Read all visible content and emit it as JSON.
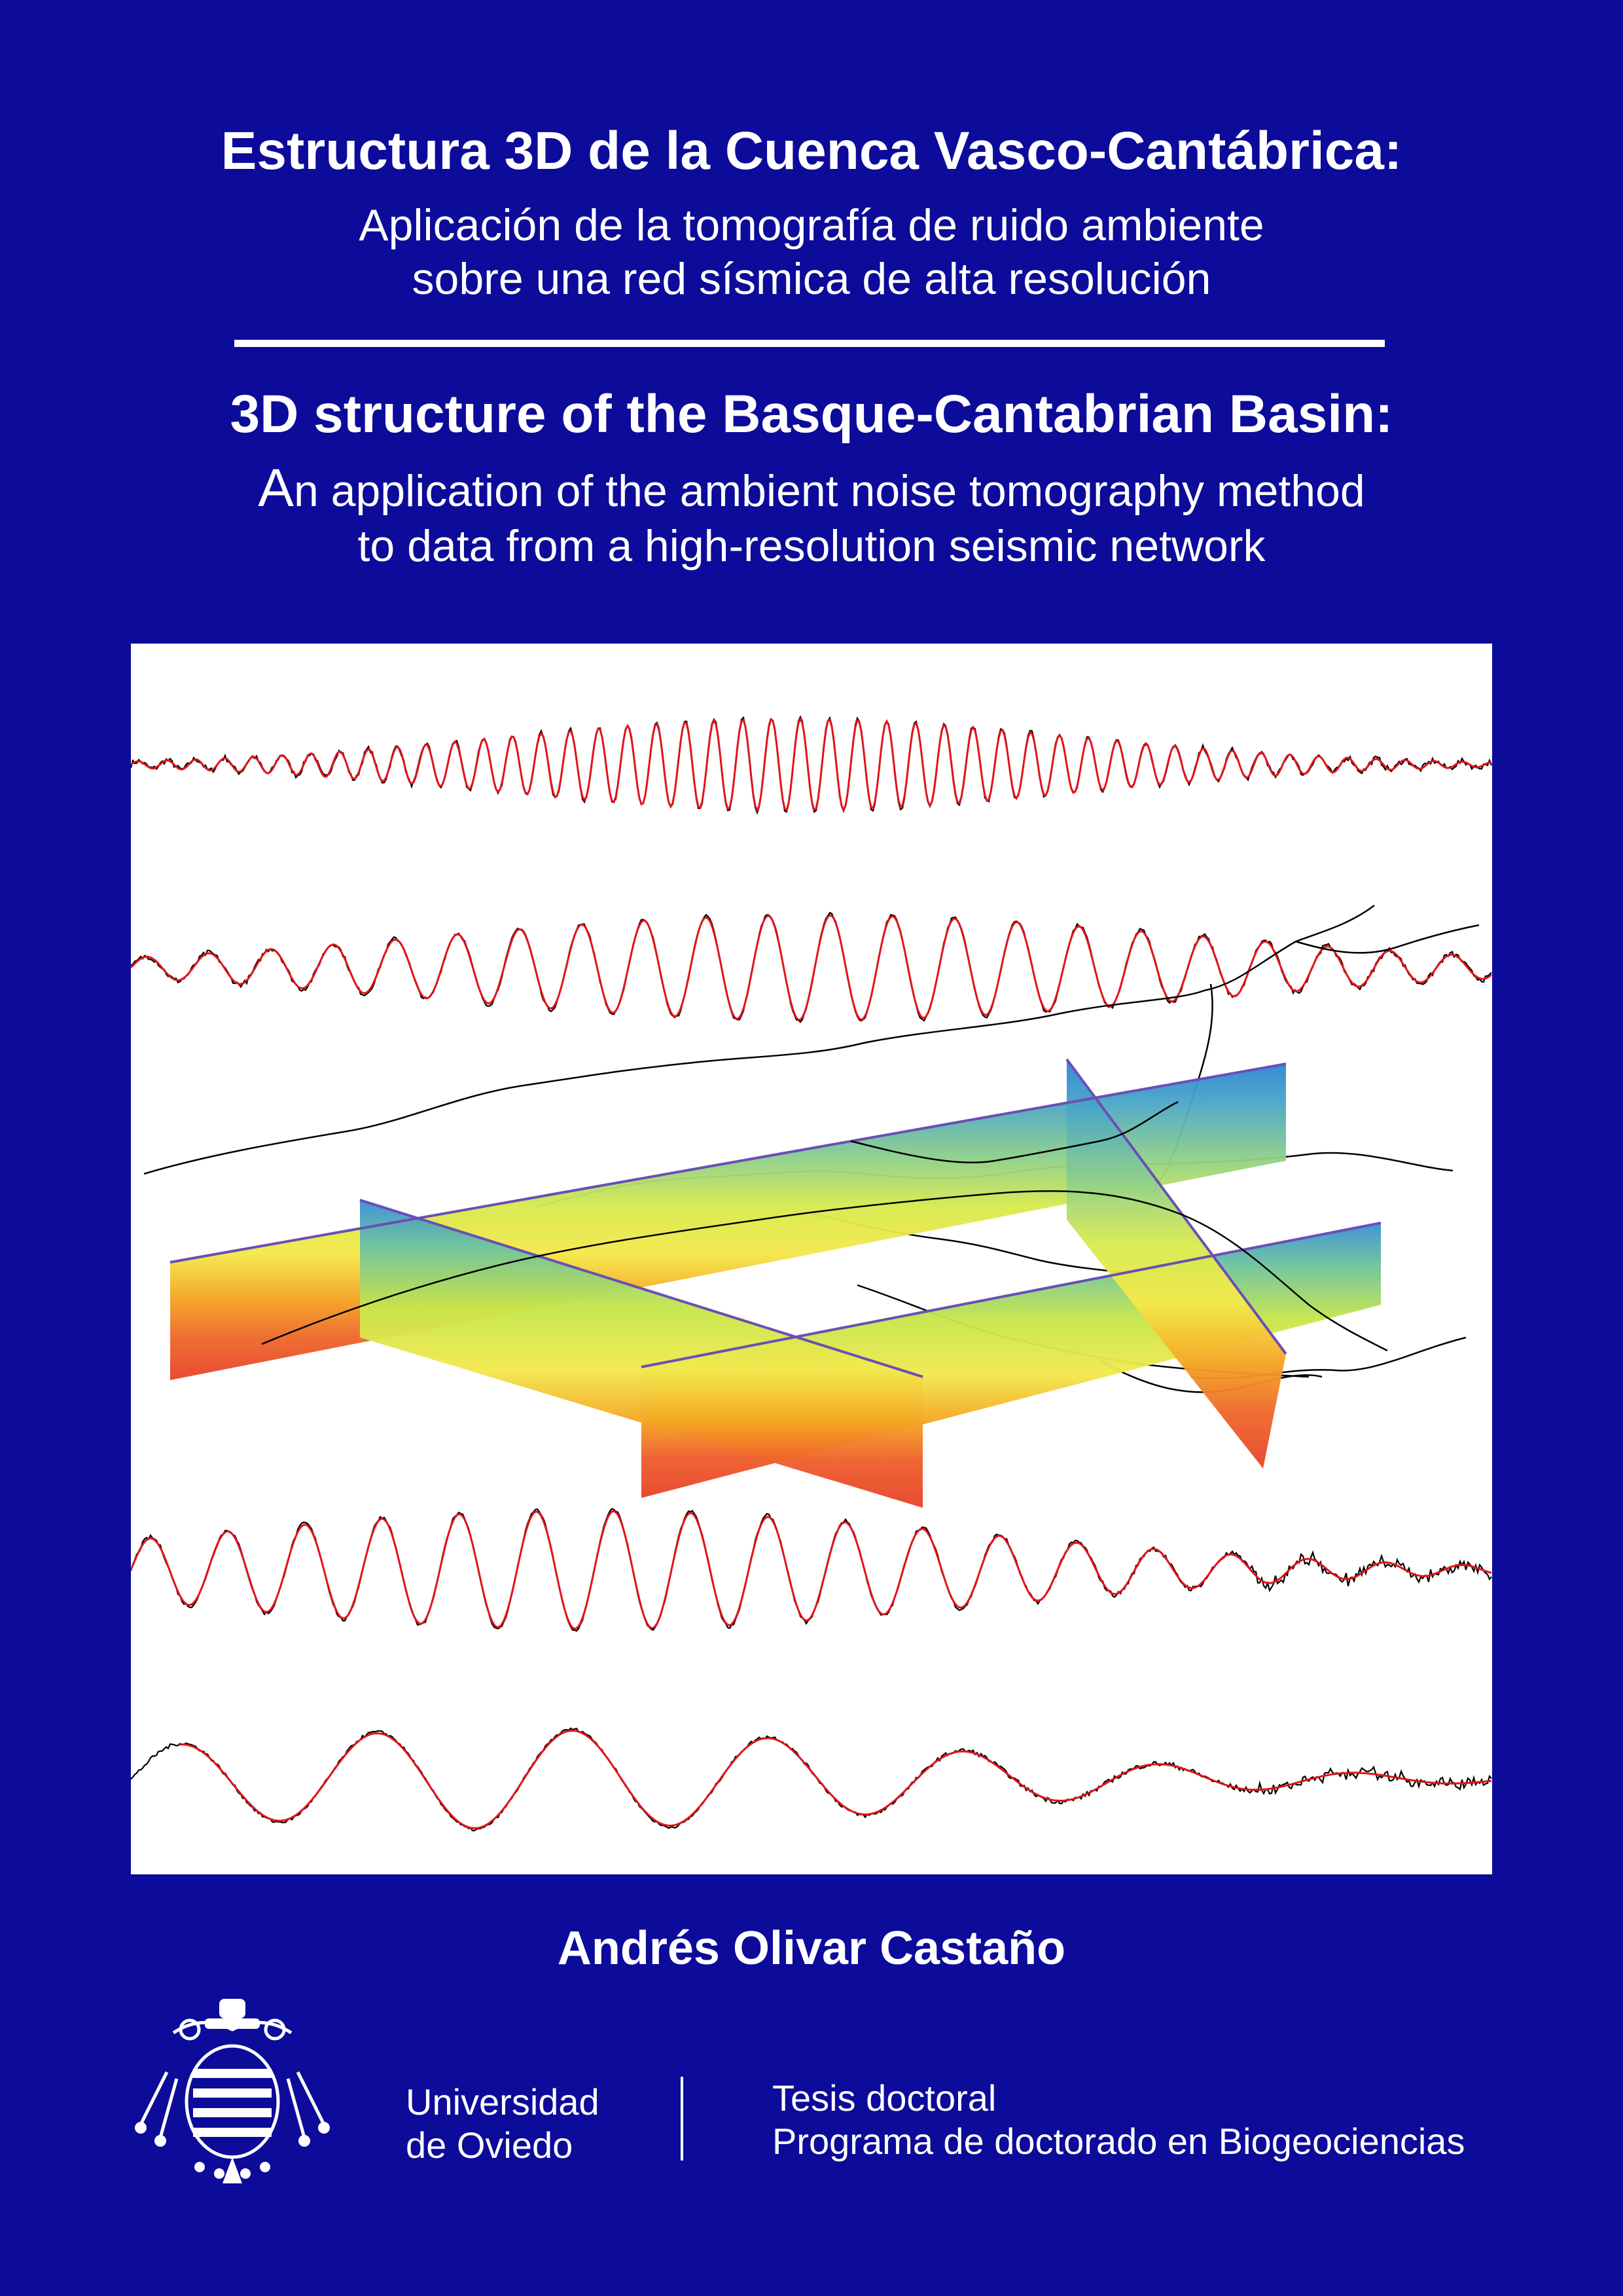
{
  "title_es": "Estructura 3D de la Cuenca Vasco-Cantábrica:",
  "subtitle_es_line1": "Aplicación de la tomografía de ruido ambiente",
  "subtitle_es_line2": "sobre una red sísmica de alta resolución",
  "title_en": "3D structure of the Basque-Cantabrian Basin:",
  "subtitle_en_line1_first": "A",
  "subtitle_en_line1_rest": "n application of the ambient noise tomography method",
  "subtitle_en_line2": "to data from a high-resolution seismic network",
  "author": "Andrés Olivar Castaño",
  "university_line1": "Universidad",
  "university_line2": "de Oviedo",
  "thesis_type": "Tesis doctoral",
  "program": "Programa de doctorado en Biogeociencias",
  "colors": {
    "background": "#0d0b99",
    "text": "#ffffff",
    "figure_background": "#ffffff",
    "observed_trace": "#000000",
    "synthetic_trace": "#e0141a"
  },
  "cover_figure": {
    "description_icon": "seismogram-traces-and-tomography-slices",
    "trace_count": 4,
    "section_colormap": [
      "#e8432b",
      "#f5a623",
      "#f2e94e",
      "#bfe24a",
      "#6cc2a0",
      "#2f86d1"
    ]
  }
}
